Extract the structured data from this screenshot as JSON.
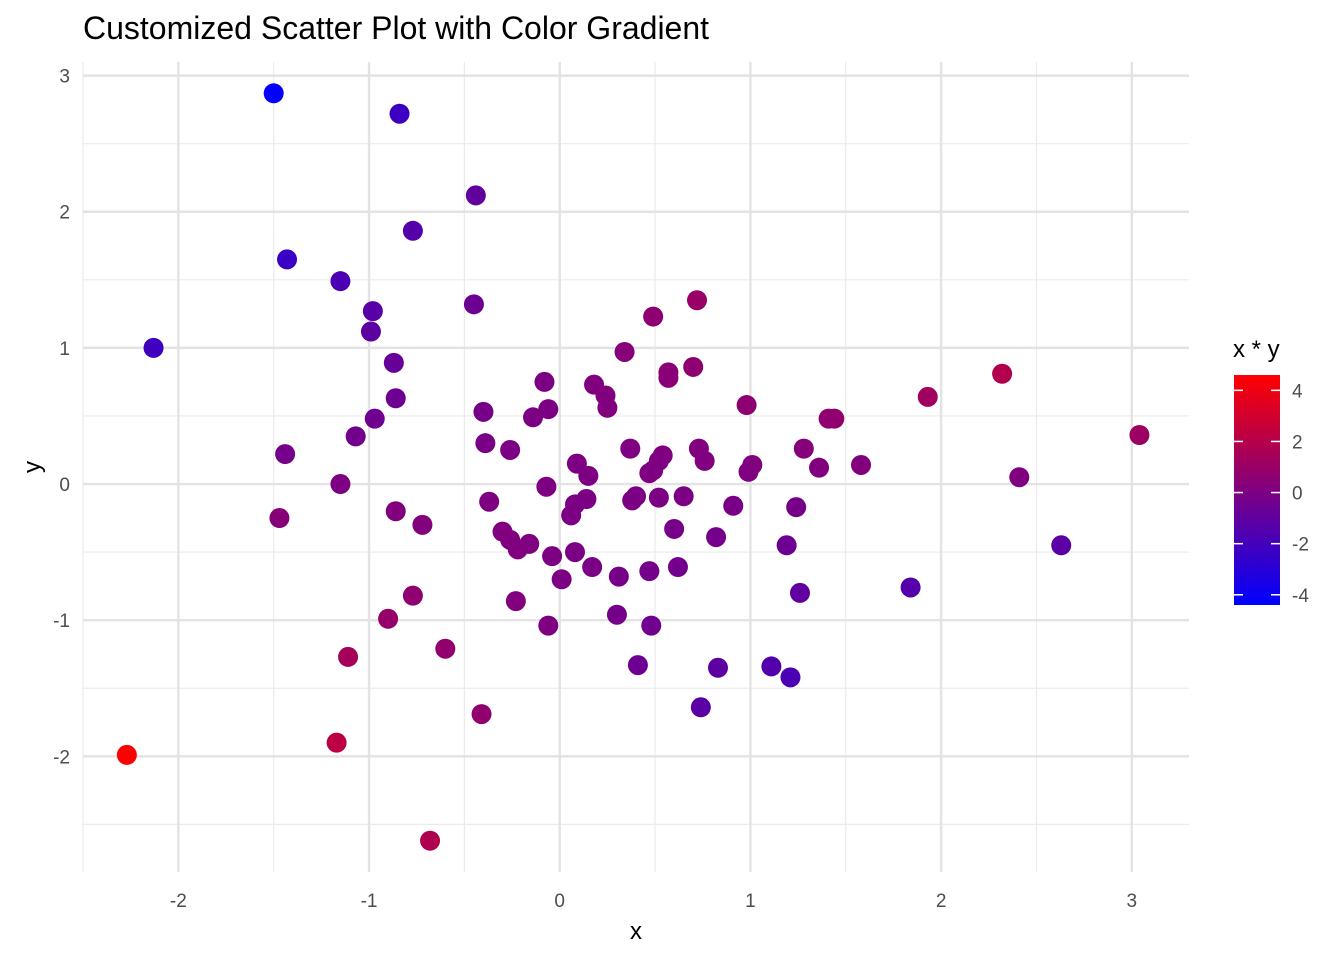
{
  "chart_data": {
    "type": "scatter",
    "title": "Customized Scatter Plot with Color Gradient",
    "xlabel": "x",
    "ylabel": "y",
    "xlim": [
      -2.5,
      3.3
    ],
    "ylim": [
      -2.85,
      3.1
    ],
    "x_major_ticks": [
      -2,
      -1,
      0,
      1,
      2,
      3
    ],
    "x_minor_ticks": [
      -2.5,
      -1.5,
      -0.5,
      0.5,
      1.5,
      2.5
    ],
    "y_major_ticks": [
      -2,
      -1,
      0,
      1,
      2,
      3
    ],
    "y_minor_ticks": [
      -2.5,
      -1.5,
      -0.5,
      0.5,
      1.5,
      2.5
    ],
    "x_tick_labels": [
      "-2",
      "-1",
      "0",
      "1",
      "2",
      "3"
    ],
    "y_tick_labels": [
      "-2",
      "-1",
      "0",
      "1",
      "2",
      "3"
    ],
    "grid": true,
    "legend": {
      "title": "x * y",
      "position": "right",
      "range": [
        -4.4,
        4.6
      ],
      "ticks": [
        4,
        2,
        0,
        -2,
        -4
      ],
      "tick_labels": [
        "4",
        "2",
        "0",
        "-2",
        "-4"
      ],
      "color_low": "#0000ff",
      "color_high": "#ff0000"
    },
    "color_encoding": "x * y",
    "points": [
      {
        "x": -1.5,
        "y": 2.87
      },
      {
        "x": -0.84,
        "y": 2.72
      },
      {
        "x": -0.44,
        "y": 2.12
      },
      {
        "x": -0.77,
        "y": 1.86
      },
      {
        "x": -1.43,
        "y": 1.65
      },
      {
        "x": -1.15,
        "y": 1.49
      },
      {
        "x": 0.72,
        "y": 1.35
      },
      {
        "x": -0.45,
        "y": 1.32
      },
      {
        "x": -0.98,
        "y": 1.27
      },
      {
        "x": 0.49,
        "y": 1.23
      },
      {
        "x": -0.99,
        "y": 1.12
      },
      {
        "x": -2.13,
        "y": 1.0
      },
      {
        "x": 0.34,
        "y": 0.97
      },
      {
        "x": -0.87,
        "y": 0.89
      },
      {
        "x": 0.7,
        "y": 0.86
      },
      {
        "x": 0.57,
        "y": 0.82
      },
      {
        "x": 2.32,
        "y": 0.81
      },
      {
        "x": 0.57,
        "y": 0.78
      },
      {
        "x": -0.08,
        "y": 0.75
      },
      {
        "x": 0.18,
        "y": 0.73
      },
      {
        "x": 0.24,
        "y": 0.65
      },
      {
        "x": 1.93,
        "y": 0.64
      },
      {
        "x": -0.86,
        "y": 0.63
      },
      {
        "x": 0.98,
        "y": 0.58
      },
      {
        "x": 0.25,
        "y": 0.56
      },
      {
        "x": -0.06,
        "y": 0.55
      },
      {
        "x": -0.4,
        "y": 0.53
      },
      {
        "x": -0.14,
        "y": 0.49
      },
      {
        "x": 1.41,
        "y": 0.48
      },
      {
        "x": 1.44,
        "y": 0.48
      },
      {
        "x": -0.97,
        "y": 0.48
      },
      {
        "x": 3.04,
        "y": 0.36
      },
      {
        "x": -1.07,
        "y": 0.35
      },
      {
        "x": -0.39,
        "y": 0.3
      },
      {
        "x": 0.73,
        "y": 0.26
      },
      {
        "x": 1.28,
        "y": 0.26
      },
      {
        "x": 0.37,
        "y": 0.26
      },
      {
        "x": -0.26,
        "y": 0.25
      },
      {
        "x": -1.44,
        "y": 0.22
      },
      {
        "x": 0.54,
        "y": 0.21
      },
      {
        "x": 0.52,
        "y": 0.17
      },
      {
        "x": 0.76,
        "y": 0.17
      },
      {
        "x": 0.09,
        "y": 0.15
      },
      {
        "x": 1.01,
        "y": 0.14
      },
      {
        "x": 1.58,
        "y": 0.14
      },
      {
        "x": 1.36,
        "y": 0.12
      },
      {
        "x": 0.49,
        "y": 0.1
      },
      {
        "x": 0.99,
        "y": 0.09
      },
      {
        "x": 0.47,
        "y": 0.08
      },
      {
        "x": 0.15,
        "y": 0.06
      },
      {
        "x": 2.41,
        "y": 0.05
      },
      {
        "x": -1.15,
        "y": 0.0
      },
      {
        "x": -0.07,
        "y": -0.02
      },
      {
        "x": 0.65,
        "y": -0.09
      },
      {
        "x": 0.4,
        "y": -0.09
      },
      {
        "x": 0.52,
        "y": -0.1
      },
      {
        "x": 0.14,
        "y": -0.11
      },
      {
        "x": 0.38,
        "y": -0.12
      },
      {
        "x": -0.37,
        "y": -0.13
      },
      {
        "x": 0.08,
        "y": -0.15
      },
      {
        "x": 0.91,
        "y": -0.16
      },
      {
        "x": 1.24,
        "y": -0.17
      },
      {
        "x": -0.86,
        "y": -0.2
      },
      {
        "x": 0.06,
        "y": -0.23
      },
      {
        "x": -1.47,
        "y": -0.25
      },
      {
        "x": -0.72,
        "y": -0.3
      },
      {
        "x": 0.6,
        "y": -0.33
      },
      {
        "x": -0.3,
        "y": -0.35
      },
      {
        "x": 0.82,
        "y": -0.39
      },
      {
        "x": -0.26,
        "y": -0.41
      },
      {
        "x": -0.16,
        "y": -0.44
      },
      {
        "x": 1.19,
        "y": -0.45
      },
      {
        "x": 2.63,
        "y": -0.45
      },
      {
        "x": -0.22,
        "y": -0.48
      },
      {
        "x": 0.08,
        "y": -0.5
      },
      {
        "x": -0.04,
        "y": -0.53
      },
      {
        "x": 0.17,
        "y": -0.61
      },
      {
        "x": 0.62,
        "y": -0.61
      },
      {
        "x": 0.47,
        "y": -0.64
      },
      {
        "x": 0.31,
        "y": -0.68
      },
      {
        "x": 0.01,
        "y": -0.7
      },
      {
        "x": 1.84,
        "y": -0.76
      },
      {
        "x": 1.26,
        "y": -0.8
      },
      {
        "x": -0.77,
        "y": -0.82
      },
      {
        "x": -0.23,
        "y": -0.86
      },
      {
        "x": 0.3,
        "y": -0.96
      },
      {
        "x": -0.9,
        "y": -0.99
      },
      {
        "x": -0.06,
        "y": -1.04
      },
      {
        "x": 0.48,
        "y": -1.04
      },
      {
        "x": -0.6,
        "y": -1.21
      },
      {
        "x": -1.11,
        "y": -1.27
      },
      {
        "x": 0.41,
        "y": -1.33
      },
      {
        "x": 1.11,
        "y": -1.34
      },
      {
        "x": 0.83,
        "y": -1.35
      },
      {
        "x": 1.21,
        "y": -1.42
      },
      {
        "x": 0.74,
        "y": -1.64
      },
      {
        "x": -0.41,
        "y": -1.69
      },
      {
        "x": -1.17,
        "y": -1.9
      },
      {
        "x": -2.27,
        "y": -1.99
      },
      {
        "x": -0.68,
        "y": -2.62
      }
    ]
  }
}
